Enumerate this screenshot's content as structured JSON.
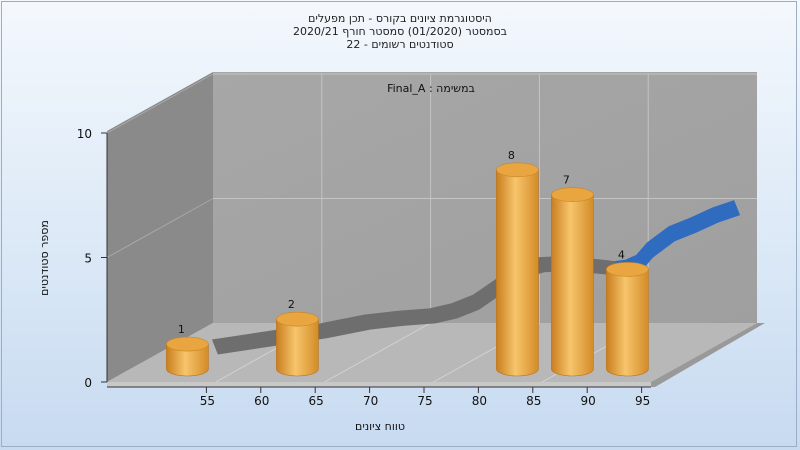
{
  "title_lines": [
    "היסטוגרמת ציונים בקורס - תכן מפעלים",
    "בסמסטר  (01/2020)  סמסטר חורף  2020/21",
    "סטודנטים רשומים - 22"
  ],
  "colors": {
    "bar": "#e8a43c",
    "curve": "#2f6bbf",
    "shadow": "#6e6e6e",
    "back_wall": "#a3a3a3",
    "side_wall": "#8a8a8a",
    "floor": "#b8b8b8"
  },
  "chart_data": {
    "type": "bar",
    "title": "היסטוגרמת ציונים בקורס - תכן מפעלים",
    "subtitle": "בסמסטר  (01/2020)  סמסטר חורף  2020/21 / סטודנטים רשומים - 22",
    "annotation": "Final_A : במשימה",
    "xlabel": "טווח ציונים",
    "ylabel": "מספר סטודנטים",
    "x_ticks": [
      55,
      60,
      65,
      70,
      75,
      80,
      85,
      90,
      95
    ],
    "y_ticks": [
      0,
      5,
      10
    ],
    "ylim": [
      0,
      10
    ],
    "xlim": [
      50,
      100
    ],
    "bars": [
      {
        "x": 55,
        "value": 1
      },
      {
        "x": 65,
        "value": 2
      },
      {
        "x": 85,
        "value": 8
      },
      {
        "x": 90,
        "value": 7
      },
      {
        "x": 95,
        "value": 4
      }
    ],
    "curve": {
      "type": "line",
      "x": [
        51,
        57,
        61,
        65,
        68,
        71,
        73,
        75,
        77,
        79,
        81,
        83,
        85,
        87,
        88,
        89,
        90,
        91,
        93,
        95,
        97,
        99
      ],
      "y": [
        0.1,
        0.5,
        0.75,
        1.1,
        1.25,
        1.35,
        1.55,
        1.9,
        2.5,
        3.15,
        3.4,
        3.45,
        3.38,
        3.3,
        3.25,
        3.3,
        3.5,
        4.0,
        4.65,
        5.0,
        5.4,
        5.7
      ]
    },
    "grid": true
  }
}
